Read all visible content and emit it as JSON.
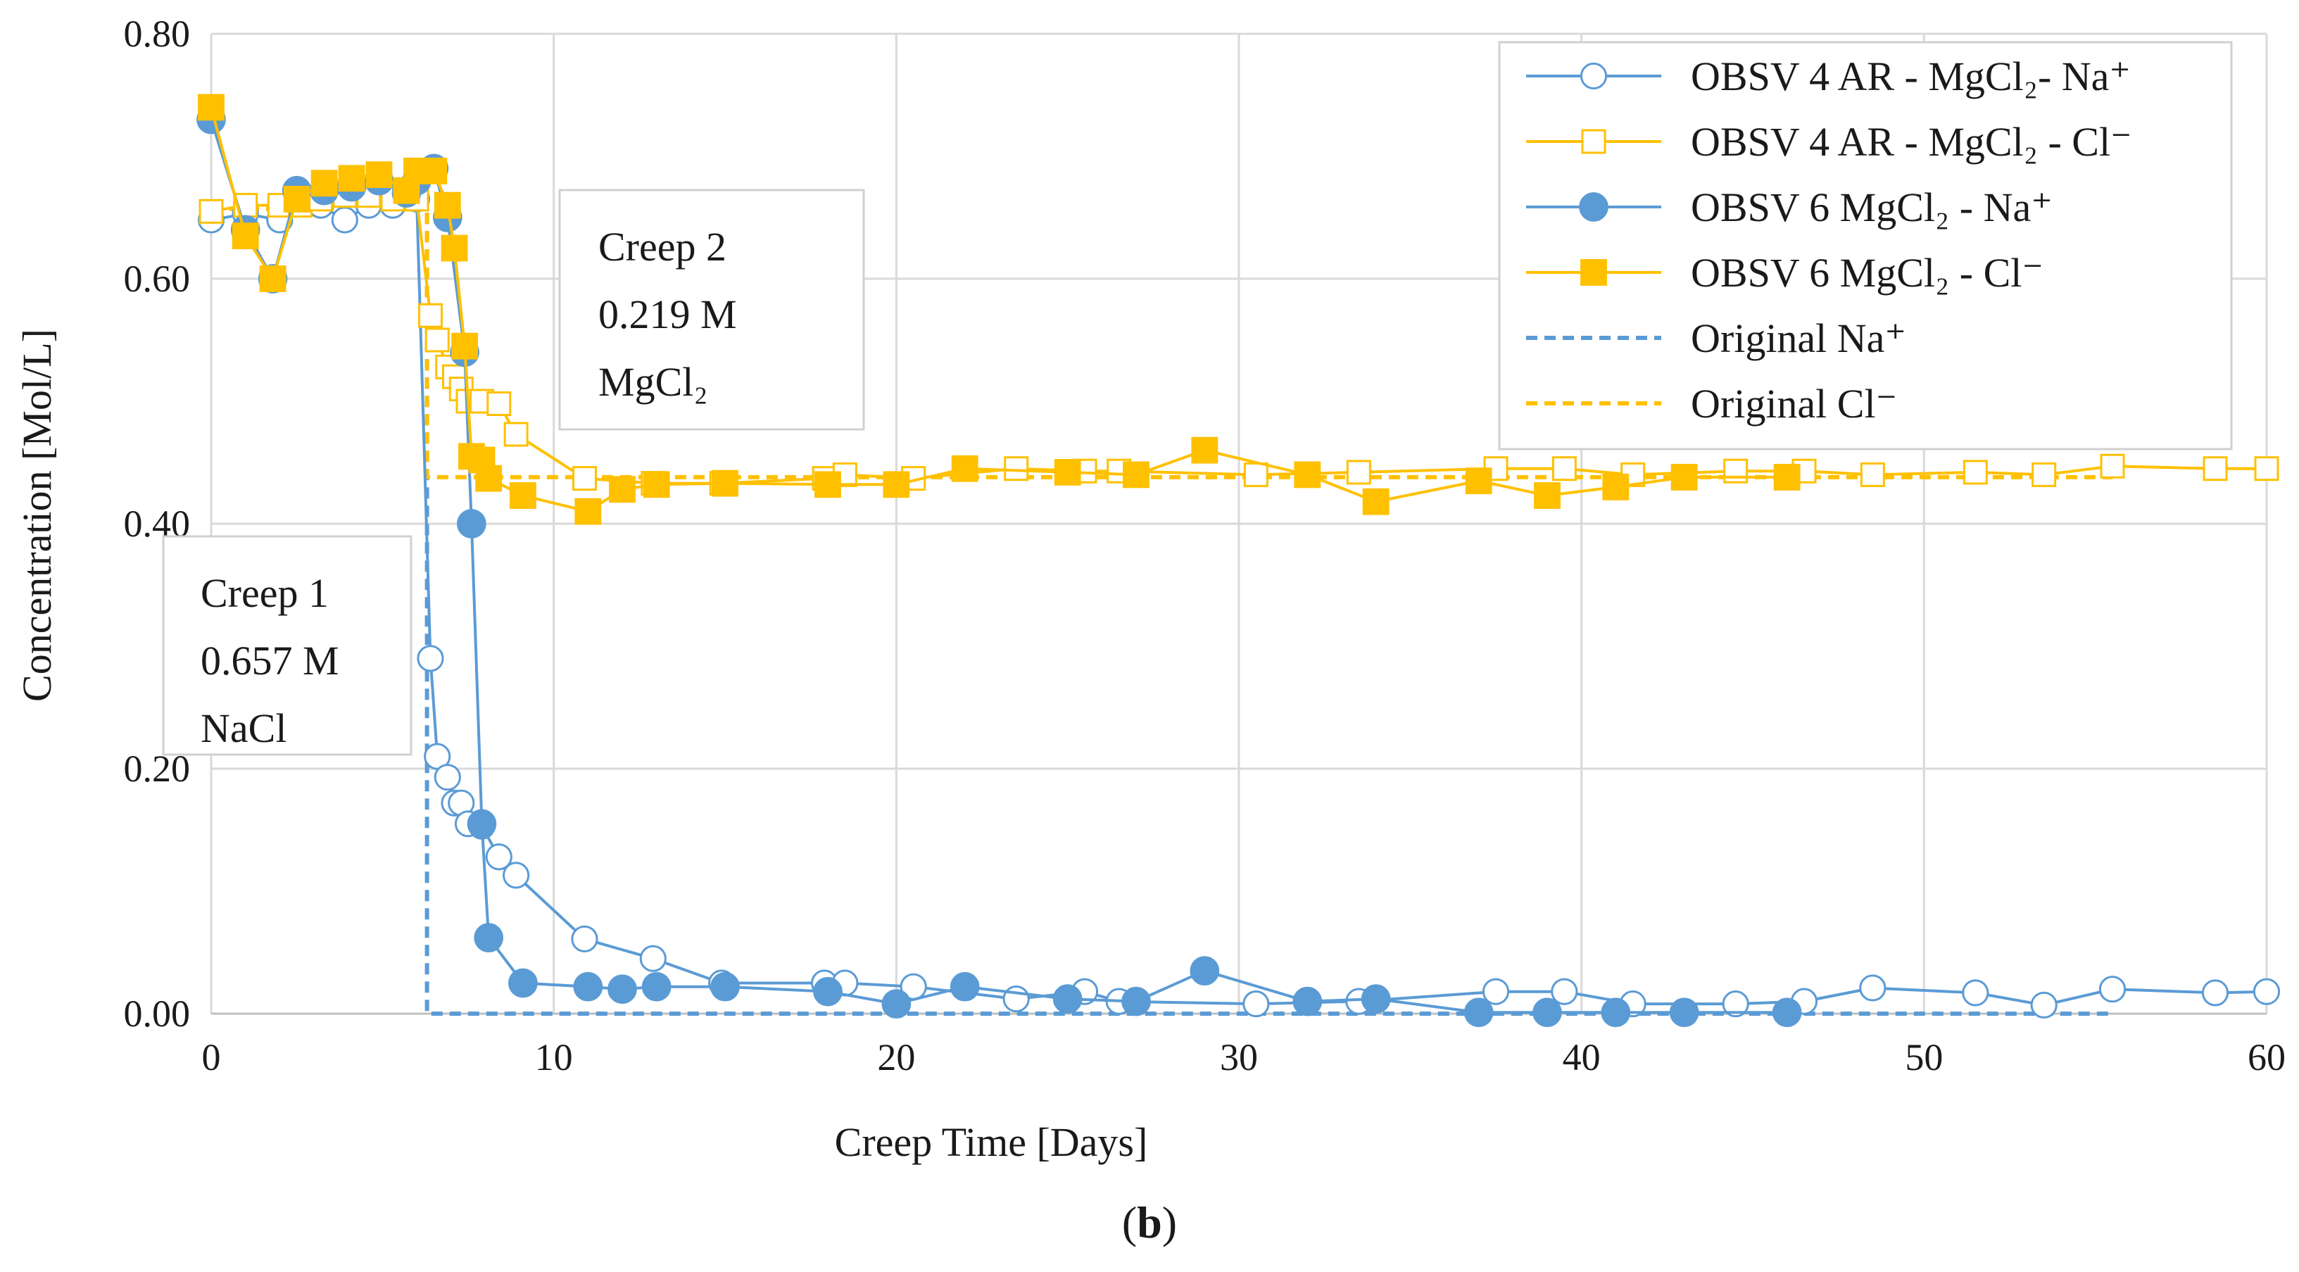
{
  "chart_data": {
    "type": "line",
    "title": "",
    "xlabel": "Creep Time [Days]",
    "ylabel": "Concentration [Mol/L]",
    "xlim": [
      0,
      60
    ],
    "ylim": [
      0,
      0.8
    ],
    "x_ticks": [
      0,
      10,
      20,
      30,
      40,
      50,
      60
    ],
    "x_tick_labels": [
      "0",
      "10",
      "20",
      "30",
      "40",
      "50",
      "60"
    ],
    "y_ticks": [
      0,
      0.2,
      0.4,
      0.6,
      0.8
    ],
    "y_tick_labels": [
      "0.00",
      "0.20",
      "0.40",
      "0.60",
      "0.80"
    ],
    "grid": true,
    "legend_position": "top-right",
    "colors": {
      "blue": "#5B9BD5",
      "gold": "#FFC000",
      "grid": "#D9D9D9",
      "axis": "#BFBFBF"
    },
    "series": [
      {
        "name": "OBSV 4 AR - MgCl₂- Na⁺",
        "color": "#5B9BD5",
        "marker": "circle-open",
        "line": "solid",
        "x": [
          0,
          1,
          2,
          2.6,
          3.2,
          3.9,
          4.6,
          5.3,
          6.0,
          6.4,
          6.6,
          6.9,
          7.1,
          7.3,
          7.5,
          7.9,
          8.4,
          8.9,
          10.9,
          12.9,
          14.9,
          17.9,
          18.5,
          20.5,
          23.5,
          25.5,
          26.5,
          30.5,
          33.5,
          37.5,
          39.5,
          41.5,
          44.5,
          46.5,
          48.5,
          51.5,
          53.5,
          55.5,
          58.5,
          60
        ],
        "y": [
          0.648,
          0.653,
          0.648,
          0.668,
          0.66,
          0.648,
          0.66,
          0.66,
          0.665,
          0.29,
          0.21,
          0.193,
          0.172,
          0.172,
          0.155,
          0.153,
          0.128,
          0.113,
          0.061,
          0.045,
          0.025,
          0.025,
          0.025,
          0.022,
          0.012,
          0.018,
          0.01,
          0.008,
          0.01,
          0.018,
          0.018,
          0.008,
          0.008,
          0.01,
          0.021,
          0.017,
          0.007,
          0.02,
          0.017,
          0.018
        ]
      },
      {
        "name": "OBSV 4 AR - MgCl₂ - Cl⁻",
        "color": "#FFC000",
        "marker": "square-open",
        "line": "solid",
        "x": [
          0,
          1,
          2,
          2.6,
          3.2,
          3.9,
          4.6,
          5.3,
          6.0,
          6.4,
          6.6,
          6.9,
          7.1,
          7.3,
          7.5,
          7.9,
          8.4,
          8.9,
          10.9,
          12.9,
          14.9,
          17.9,
          18.5,
          20.5,
          23.5,
          25.5,
          26.5,
          30.5,
          33.5,
          37.5,
          39.5,
          41.5,
          44.5,
          46.5,
          48.5,
          51.5,
          53.5,
          55.5,
          58.5,
          60
        ],
        "y": [
          0.655,
          0.66,
          0.66,
          0.66,
          0.665,
          0.668,
          0.668,
          0.665,
          0.665,
          0.57,
          0.55,
          0.528,
          0.52,
          0.51,
          0.5,
          0.5,
          0.498,
          0.473,
          0.437,
          0.433,
          0.433,
          0.437,
          0.44,
          0.437,
          0.445,
          0.443,
          0.443,
          0.44,
          0.442,
          0.445,
          0.445,
          0.44,
          0.443,
          0.443,
          0.44,
          0.442,
          0.44,
          0.447,
          0.445,
          0.445
        ]
      },
      {
        "name": "OBSV 6 MgCl₂ - Na⁺",
        "color": "#5B9BD5",
        "marker": "circle-filled",
        "line": "solid",
        "x": [
          0,
          1,
          1.8,
          2.5,
          3.3,
          4.1,
          4.9,
          5.7,
          6.0,
          6.5,
          6.9,
          7.4,
          7.6,
          7.9,
          8.1,
          9.1,
          11.0,
          12.0,
          13.0,
          15.0,
          18.0,
          20.0,
          22.0,
          25.0,
          27.0,
          29.0,
          32.0,
          34.0,
          37.0,
          39.0,
          41.0,
          43.0,
          46.0
        ],
        "y": [
          0.73,
          0.64,
          0.6,
          0.672,
          0.672,
          0.675,
          0.68,
          0.67,
          0.68,
          0.69,
          0.65,
          0.54,
          0.4,
          0.155,
          0.062,
          0.025,
          0.022,
          0.02,
          0.022,
          0.022,
          0.018,
          0.008,
          0.022,
          0.012,
          0.01,
          0.035,
          0.01,
          0.012,
          0.001,
          0.001,
          0.001,
          0.001,
          0.001
        ]
      },
      {
        "name": "OBSV 6 MgCl₂ - Cl⁻",
        "color": "#FFC000",
        "marker": "square-filled",
        "line": "solid",
        "x": [
          0,
          1,
          1.8,
          2.5,
          3.3,
          4.1,
          4.9,
          5.7,
          6.0,
          6.5,
          6.9,
          7.1,
          7.4,
          7.6,
          7.9,
          8.1,
          9.1,
          11.0,
          12.0,
          13.0,
          15.0,
          18.0,
          20.0,
          22.0,
          25.0,
          27.0,
          29.0,
          32.0,
          34.0,
          37.0,
          39.0,
          41.0,
          43.0,
          46.0
        ],
        "y": [
          0.74,
          0.635,
          0.6,
          0.665,
          0.678,
          0.682,
          0.685,
          0.672,
          0.688,
          0.688,
          0.66,
          0.625,
          0.545,
          0.455,
          0.452,
          0.437,
          0.423,
          0.41,
          0.428,
          0.432,
          0.433,
          0.432,
          0.432,
          0.445,
          0.442,
          0.44,
          0.46,
          0.44,
          0.418,
          0.435,
          0.423,
          0.43,
          0.438,
          0.438
        ]
      },
      {
        "name": "Original Na⁺",
        "color": "#5B9BD5",
        "marker": "none",
        "line": "dashed",
        "x": [
          0,
          6.3,
          6.3,
          55.5
        ],
        "y": [
          0.657,
          0.657,
          0.0,
          0.0
        ]
      },
      {
        "name": "Original Cl⁻",
        "color": "#FFC000",
        "marker": "none",
        "line": "dashed",
        "x": [
          0,
          6.3,
          6.3,
          55.5
        ],
        "y": [
          0.657,
          0.657,
          0.438,
          0.438
        ]
      }
    ],
    "annotations": [
      {
        "name": "creep-1",
        "lines": [
          "Creep 1",
          "0.657 M",
          "NaCl"
        ]
      },
      {
        "name": "creep-2",
        "lines": [
          "Creep 2",
          "0.219 M",
          "MgCl₂"
        ]
      }
    ],
    "caption": {
      "open": "(",
      "letter": "b",
      "close": ")"
    }
  }
}
